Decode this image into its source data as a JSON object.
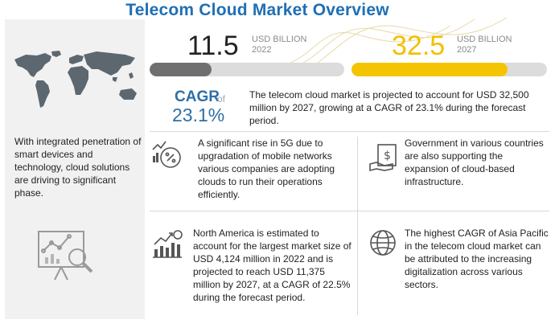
{
  "title": "Telecom  Cloud Market Overview",
  "left_panel": {
    "text": "With integrated penetration of smart devices and technology, cloud solutions are driving to significant phase."
  },
  "stats": [
    {
      "value": "11.5",
      "unit": "USD BILLION",
      "year": "2022",
      "bar_fill_fraction": 0.32,
      "color": "#6f6f6f"
    },
    {
      "value": "32.5",
      "unit": "USD BILLION",
      "year": "2027",
      "bar_fill_fraction": 0.8,
      "color": "#f5c400"
    }
  ],
  "cagr": {
    "label": "CAGR",
    "of": "of",
    "value": "23.1%"
  },
  "intro": "The telecom cloud market is projected to account for USD 32,500 million by 2027, growing at a CAGR of 23.1% during the forecast period.",
  "cards": [
    {
      "icon": "5g-growth-icon",
      "text": "A significant rise in 5G due to upgradation of mobile networks various companies are adopting clouds to run their operations efficiently."
    },
    {
      "icon": "government-funding-icon",
      "text": "Government in various countries are also supporting the expansion of cloud-based infrastructure."
    },
    {
      "icon": "growth-chart-icon",
      "text": "North America is estimated to account for the largest market size of USD 4,124 million in 2022 and is projected to reach USD 11,375 million by 2027, at a CAGR of 22.5% during the forecast period."
    },
    {
      "icon": "globe-icon",
      "text": "The highest CAGR of Asia Pacific in the telecom cloud market can be attributed to the increasing digitalization across various sectors."
    }
  ],
  "colors": {
    "title": "#1f6fb4",
    "accent_blue": "#2e6fa8",
    "gray_bar": "#6f6f6f",
    "yellow_bar": "#f5c400"
  }
}
